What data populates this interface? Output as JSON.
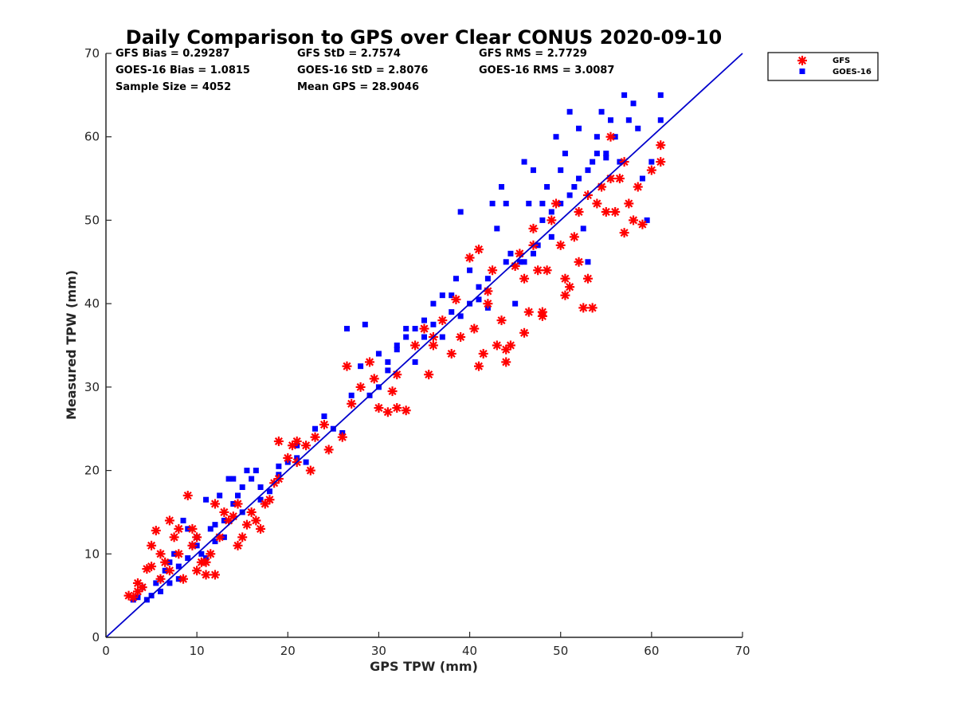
{
  "chart_data": {
    "type": "scatter",
    "title": "Daily Comparison to GPS over Clear CONUS 2020-09-10",
    "xlabel": "GPS TPW (mm)",
    "ylabel": "Measured TPW (mm)",
    "xlim": [
      0,
      70
    ],
    "ylim": [
      0,
      70
    ],
    "xticks": [
      "0",
      "10",
      "20",
      "30",
      "40",
      "50",
      "60",
      "70"
    ],
    "yticks": [
      "0",
      "10",
      "20",
      "30",
      "40",
      "50",
      "60",
      "70"
    ],
    "grid": false,
    "legend_position": "outside-top-right",
    "reference_line": {
      "name": "1:1 line",
      "from": [
        0,
        0
      ],
      "to": [
        70,
        70
      ],
      "color": "#0000cc"
    },
    "stats": [
      [
        "GFS Bias = 0.29287",
        "GFS StD = 2.7574",
        "GFS RMS = 2.7729"
      ],
      [
        "GOES-16 Bias = 1.0815",
        "GOES-16 StD = 2.8076",
        "GOES-16 RMS = 3.0087"
      ],
      [
        "Sample Size = 4052",
        "Mean GPS = 28.9046"
      ]
    ],
    "series": [
      {
        "name": "GFS",
        "marker": "asterisk",
        "color": "#ff0000",
        "points": [
          [
            2.5,
            5.0
          ],
          [
            3,
            4.8
          ],
          [
            3.5,
            5.5
          ],
          [
            4,
            6
          ],
          [
            4.5,
            8.2
          ],
          [
            5,
            8.5
          ],
          [
            5.5,
            12.8
          ],
          [
            5,
            11
          ],
          [
            6,
            7
          ],
          [
            6.5,
            9
          ],
          [
            7,
            14
          ],
          [
            7.5,
            12
          ],
          [
            8,
            10
          ],
          [
            8.5,
            7
          ],
          [
            9,
            17
          ],
          [
            9.5,
            11
          ],
          [
            10,
            8
          ],
          [
            10.5,
            9
          ],
          [
            11,
            7.5
          ],
          [
            11.5,
            10
          ],
          [
            12,
            7.5
          ],
          [
            12.5,
            12
          ],
          [
            13,
            15
          ],
          [
            13.5,
            14
          ],
          [
            14,
            14.5
          ],
          [
            14.5,
            11
          ],
          [
            15,
            12
          ],
          [
            15.5,
            13.5
          ],
          [
            16,
            15
          ],
          [
            16.5,
            14
          ],
          [
            17,
            13
          ],
          [
            17.5,
            16
          ],
          [
            18,
            16.5
          ],
          [
            18.5,
            18.5
          ],
          [
            19,
            19
          ],
          [
            20,
            21.5
          ],
          [
            21,
            23.5
          ],
          [
            22,
            23
          ],
          [
            23,
            24
          ],
          [
            24,
            25.5
          ],
          [
            24.5,
            22.5
          ],
          [
            26,
            24
          ],
          [
            26.5,
            32.5
          ],
          [
            27,
            28
          ],
          [
            28,
            30
          ],
          [
            29,
            33
          ],
          [
            30,
            27.5
          ],
          [
            31,
            27
          ],
          [
            32,
            27.5
          ],
          [
            33,
            27.2
          ],
          [
            32,
            31.5
          ],
          [
            34,
            35
          ],
          [
            35,
            37
          ],
          [
            35.5,
            31.5
          ],
          [
            36,
            36
          ],
          [
            37,
            38
          ],
          [
            38,
            34
          ],
          [
            39,
            36
          ],
          [
            40,
            45.5
          ],
          [
            40.5,
            37
          ],
          [
            41,
            46.5
          ],
          [
            41.5,
            34
          ],
          [
            42,
            40
          ],
          [
            42.5,
            44
          ],
          [
            43,
            35
          ],
          [
            43.5,
            38
          ],
          [
            44,
            33
          ],
          [
            44.5,
            35
          ],
          [
            45,
            44.5
          ],
          [
            45.5,
            46
          ],
          [
            46,
            43
          ],
          [
            46.5,
            39
          ],
          [
            47,
            47
          ],
          [
            47.5,
            44
          ],
          [
            48,
            39
          ],
          [
            48.5,
            44
          ],
          [
            49,
            50
          ],
          [
            49.5,
            52
          ],
          [
            50,
            47
          ],
          [
            50.5,
            41
          ],
          [
            51,
            42
          ],
          [
            51.5,
            48
          ],
          [
            52,
            51
          ],
          [
            52.5,
            39.5
          ],
          [
            53,
            43
          ],
          [
            53.5,
            39.5
          ],
          [
            54,
            52
          ],
          [
            54.5,
            54
          ],
          [
            55,
            51
          ],
          [
            55.5,
            60
          ],
          [
            56,
            51
          ],
          [
            56.5,
            55
          ],
          [
            57,
            48.5
          ],
          [
            57.5,
            52
          ],
          [
            58,
            50
          ],
          [
            58.5,
            54
          ],
          [
            59,
            49.5
          ],
          [
            60,
            56
          ],
          [
            61,
            59
          ],
          [
            61,
            57
          ],
          [
            44,
            34.5
          ],
          [
            41,
            32.5
          ],
          [
            46,
            36.5
          ],
          [
            48,
            38.5
          ],
          [
            50.5,
            43
          ],
          [
            52,
            45
          ],
          [
            3.5,
            6.5
          ],
          [
            6,
            10
          ],
          [
            7,
            8
          ],
          [
            8,
            13
          ],
          [
            9.5,
            13
          ],
          [
            10,
            12
          ],
          [
            11,
            9
          ],
          [
            12,
            16
          ],
          [
            14.5,
            16
          ],
          [
            19,
            23.5
          ],
          [
            20.5,
            23
          ],
          [
            22.5,
            20
          ],
          [
            21,
            21
          ],
          [
            29.5,
            31
          ],
          [
            31.5,
            29.5
          ],
          [
            36,
            35
          ],
          [
            38.5,
            40.5
          ],
          [
            42,
            41.5
          ],
          [
            47,
            49
          ],
          [
            53,
            53
          ],
          [
            55.5,
            55
          ],
          [
            57,
            57
          ]
        ]
      },
      {
        "name": "GOES-16",
        "marker": "square",
        "color": "#0000ff",
        "points": [
          [
            3,
            4.5
          ],
          [
            3.5,
            4.8
          ],
          [
            4,
            6
          ],
          [
            4.5,
            4.5
          ],
          [
            5,
            5
          ],
          [
            5.5,
            6.5
          ],
          [
            6,
            7
          ],
          [
            6.5,
            8
          ],
          [
            7,
            9
          ],
          [
            7.5,
            10
          ],
          [
            8,
            8.5
          ],
          [
            8.5,
            14
          ],
          [
            9,
            13
          ],
          [
            9.5,
            11
          ],
          [
            10,
            12
          ],
          [
            10.5,
            10
          ],
          [
            11,
            16.5
          ],
          [
            11.5,
            13
          ],
          [
            12,
            13.5
          ],
          [
            12.5,
            17
          ],
          [
            13,
            14
          ],
          [
            13.5,
            19
          ],
          [
            14,
            19
          ],
          [
            14.5,
            17
          ],
          [
            15,
            18
          ],
          [
            15.5,
            20
          ],
          [
            16,
            19
          ],
          [
            16.5,
            20
          ],
          [
            17,
            18
          ],
          [
            18,
            17.5
          ],
          [
            19,
            19.5
          ],
          [
            20,
            21
          ],
          [
            21,
            23
          ],
          [
            22,
            21
          ],
          [
            23,
            25
          ],
          [
            24,
            26.5
          ],
          [
            25,
            25
          ],
          [
            26,
            24.5
          ],
          [
            26.5,
            37
          ],
          [
            27,
            29
          ],
          [
            28,
            32.5
          ],
          [
            28.5,
            37.5
          ],
          [
            29,
            29
          ],
          [
            30,
            30
          ],
          [
            31,
            33
          ],
          [
            32,
            35
          ],
          [
            33,
            36
          ],
          [
            34,
            37
          ],
          [
            35,
            38
          ],
          [
            36,
            40
          ],
          [
            37,
            41
          ],
          [
            38,
            41
          ],
          [
            38.5,
            43
          ],
          [
            39,
            51
          ],
          [
            40,
            44
          ],
          [
            41,
            42
          ],
          [
            42,
            43
          ],
          [
            42.5,
            52
          ],
          [
            43,
            49
          ],
          [
            43.5,
            54
          ],
          [
            44,
            52
          ],
          [
            44.5,
            46
          ],
          [
            45,
            40
          ],
          [
            45.5,
            45
          ],
          [
            46,
            57
          ],
          [
            46.5,
            52
          ],
          [
            47,
            56
          ],
          [
            47.5,
            47
          ],
          [
            48,
            52
          ],
          [
            48.5,
            54
          ],
          [
            49,
            48
          ],
          [
            49.5,
            60
          ],
          [
            50,
            56
          ],
          [
            50.5,
            58
          ],
          [
            51,
            63
          ],
          [
            51.5,
            54
          ],
          [
            52,
            61
          ],
          [
            52.5,
            49
          ],
          [
            53,
            45
          ],
          [
            53.5,
            57
          ],
          [
            54,
            60
          ],
          [
            54.5,
            63
          ],
          [
            55,
            58
          ],
          [
            55.5,
            62
          ],
          [
            56,
            60
          ],
          [
            56.5,
            57
          ],
          [
            57,
            65
          ],
          [
            57.5,
            62
          ],
          [
            58,
            64
          ],
          [
            58.5,
            61
          ],
          [
            59,
            55
          ],
          [
            59.5,
            50
          ],
          [
            60,
            57
          ],
          [
            61,
            65
          ],
          [
            61,
            62
          ],
          [
            6,
            5.5
          ],
          [
            7,
            6.5
          ],
          [
            8,
            7
          ],
          [
            9,
            9.5
          ],
          [
            10,
            11
          ],
          [
            11,
            9.5
          ],
          [
            12,
            11.5
          ],
          [
            13,
            12
          ],
          [
            14,
            16
          ],
          [
            15,
            15
          ],
          [
            17,
            16.5
          ],
          [
            19,
            20.5
          ],
          [
            21,
            21.5
          ],
          [
            30,
            34
          ],
          [
            31,
            32
          ],
          [
            32,
            34.5
          ],
          [
            33,
            37
          ],
          [
            34,
            33
          ],
          [
            35,
            36
          ],
          [
            36,
            37.5
          ],
          [
            37,
            36
          ],
          [
            38,
            39
          ],
          [
            39,
            38.5
          ],
          [
            40,
            40
          ],
          [
            41,
            40.5
          ],
          [
            42,
            39.5
          ],
          [
            44,
            45
          ],
          [
            46,
            45
          ],
          [
            47,
            46
          ],
          [
            48,
            50
          ],
          [
            49,
            51
          ],
          [
            50,
            52
          ],
          [
            51,
            53
          ],
          [
            52,
            55
          ],
          [
            53,
            56
          ],
          [
            54,
            58
          ],
          [
            55,
            57.5
          ]
        ]
      }
    ]
  }
}
